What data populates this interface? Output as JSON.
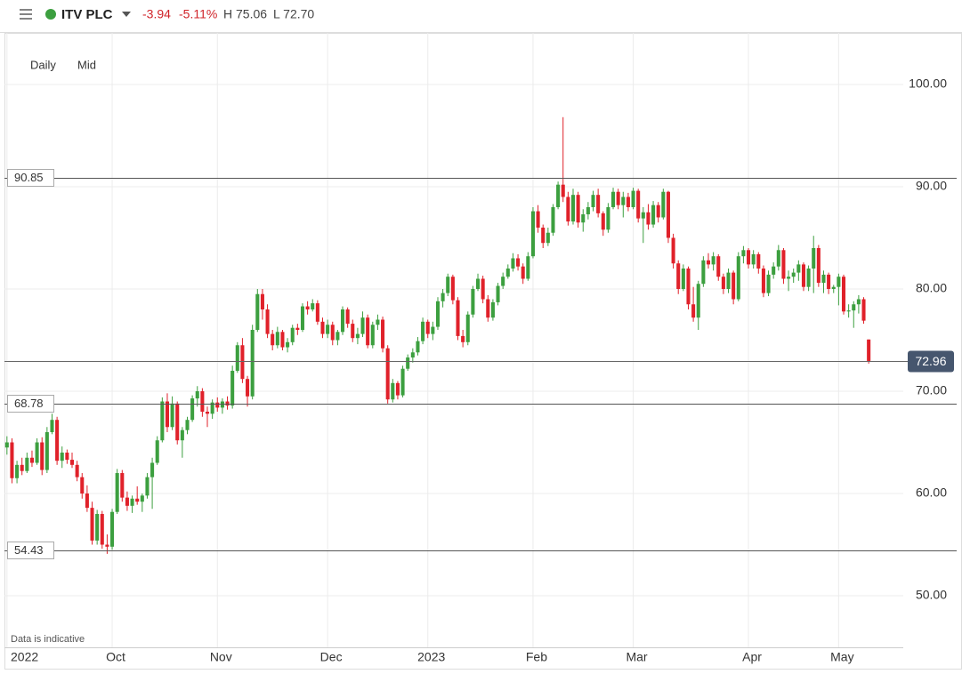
{
  "header": {
    "symbol": "ITV PLC",
    "change": "-3.94",
    "change_pct": "-5.11%",
    "high": "H 75.06",
    "low": "L 72.70"
  },
  "chart_data": {
    "type": "candlestick",
    "interval": "Daily",
    "price_type": "Mid",
    "note": "Data is indicative",
    "up_color": "#3c9f3f",
    "down_color": "#e0212a",
    "grid": true,
    "xlim": [
      -0.5,
      178.9
    ],
    "xticks": [
      {
        "value": 0,
        "label": "2022"
      },
      {
        "value": 21,
        "label": "Oct"
      },
      {
        "value": 42,
        "label": "Nov"
      },
      {
        "value": 64,
        "label": "Dec"
      },
      {
        "value": 84,
        "label": "2023"
      },
      {
        "value": 105,
        "label": "Feb"
      },
      {
        "value": 125,
        "label": "Mar"
      },
      {
        "value": 148,
        "label": "Apr"
      },
      {
        "value": 166,
        "label": "May"
      }
    ],
    "ylim": [
      44.96,
      105.04
    ],
    "yticks": [
      {
        "value": 50,
        "label": "50.00"
      },
      {
        "value": 60,
        "label": "60.00"
      },
      {
        "value": 70,
        "label": "70.00"
      },
      {
        "value": 80,
        "label": "80.00"
      },
      {
        "value": 90,
        "label": "90.00"
      },
      {
        "value": 100,
        "label": "100.00"
      }
    ],
    "levels": [
      90.85,
      68.78,
      54.43
    ],
    "last_price": 72.96,
    "ohlc": [
      [
        64.5,
        65.6,
        63.8,
        65.0
      ],
      [
        65.0,
        65.4,
        61.0,
        61.5
      ],
      [
        61.5,
        63.2,
        61.0,
        62.8
      ],
      [
        62.8,
        63.5,
        61.8,
        62.2
      ],
      [
        62.2,
        64.0,
        62.0,
        63.5
      ],
      [
        63.5,
        64.2,
        62.6,
        63.0
      ],
      [
        63.0,
        65.4,
        62.8,
        65.0
      ],
      [
        65.0,
        65.5,
        61.8,
        62.3
      ],
      [
        62.3,
        66.5,
        62.0,
        66.0
      ],
      [
        66.0,
        67.8,
        65.8,
        67.2
      ],
      [
        67.2,
        67.5,
        62.8,
        63.2
      ],
      [
        63.2,
        64.6,
        62.5,
        64.0
      ],
      [
        64.0,
        64.3,
        62.9,
        63.3
      ],
      [
        63.3,
        64.0,
        62.5,
        62.8
      ],
      [
        62.8,
        63.2,
        61.2,
        61.6
      ],
      [
        61.6,
        62.0,
        59.5,
        60.0
      ],
      [
        60.0,
        60.8,
        58.2,
        58.6
      ],
      [
        58.6,
        59.2,
        55.0,
        55.4
      ],
      [
        55.4,
        58.4,
        55.0,
        58.0
      ],
      [
        58.0,
        58.3,
        54.6,
        55.0
      ],
      [
        55.0,
        56.0,
        54.1,
        54.8
      ],
      [
        54.8,
        58.5,
        54.5,
        58.2
      ],
      [
        58.2,
        62.4,
        58.0,
        62.0
      ],
      [
        62.0,
        62.3,
        59.2,
        59.6
      ],
      [
        59.6,
        60.2,
        58.3,
        58.8
      ],
      [
        58.8,
        59.8,
        58.1,
        59.5
      ],
      [
        59.5,
        60.7,
        58.9,
        59.2
      ],
      [
        59.2,
        60.0,
        58.2,
        59.8
      ],
      [
        59.8,
        62.0,
        59.5,
        61.6
      ],
      [
        61.6,
        63.5,
        58.5,
        63.0
      ],
      [
        63.0,
        65.6,
        62.8,
        65.2
      ],
      [
        65.2,
        69.4,
        65.0,
        69.0
      ],
      [
        69.0,
        69.8,
        66.0,
        66.5
      ],
      [
        66.5,
        69.5,
        66.2,
        68.8
      ],
      [
        68.8,
        69.0,
        64.8,
        65.2
      ],
      [
        65.2,
        66.5,
        63.5,
        66.2
      ],
      [
        66.2,
        67.5,
        65.8,
        67.2
      ],
      [
        67.2,
        69.6,
        67.0,
        69.3
      ],
      [
        69.3,
        70.5,
        68.5,
        70.0
      ],
      [
        70.0,
        70.3,
        67.5,
        68.0
      ],
      [
        68.0,
        68.5,
        66.5,
        67.8
      ],
      [
        67.8,
        69.2,
        67.3,
        68.9
      ],
      [
        68.9,
        69.4,
        68.0,
        68.4
      ],
      [
        68.4,
        69.3,
        67.8,
        69.0
      ],
      [
        69.0,
        69.5,
        68.2,
        68.6
      ],
      [
        68.6,
        72.5,
        68.3,
        72.0
      ],
      [
        72.0,
        74.8,
        71.8,
        74.5
      ],
      [
        74.5,
        75.2,
        70.8,
        71.2
      ],
      [
        71.2,
        71.5,
        68.5,
        69.5
      ],
      [
        69.5,
        76.5,
        69.2,
        76.0
      ],
      [
        76.0,
        80.0,
        75.8,
        79.5
      ],
      [
        79.5,
        80.0,
        77.0,
        78.0
      ],
      [
        78.0,
        78.5,
        75.2,
        75.6
      ],
      [
        75.6,
        76.0,
        74.0,
        74.5
      ],
      [
        74.5,
        76.3,
        74.2,
        75.8
      ],
      [
        75.8,
        76.0,
        74.0,
        74.3
      ],
      [
        74.3,
        75.2,
        73.8,
        74.8
      ],
      [
        74.8,
        76.5,
        74.5,
        76.2
      ],
      [
        76.2,
        76.6,
        75.5,
        76.0
      ],
      [
        76.0,
        78.6,
        75.8,
        78.3
      ],
      [
        78.3,
        78.8,
        77.5,
        78.0
      ],
      [
        78.0,
        79.0,
        77.8,
        78.6
      ],
      [
        78.6,
        78.9,
        76.5,
        76.8
      ],
      [
        76.8,
        77.2,
        75.2,
        75.6
      ],
      [
        75.6,
        77.0,
        75.2,
        76.5
      ],
      [
        76.5,
        76.8,
        74.5,
        75.0
      ],
      [
        75.0,
        76.0,
        74.5,
        75.8
      ],
      [
        75.8,
        78.3,
        75.5,
        78.0
      ],
      [
        78.0,
        78.2,
        76.2,
        76.6
      ],
      [
        76.6,
        77.0,
        74.8,
        75.2
      ],
      [
        75.2,
        76.2,
        74.6,
        75.6
      ],
      [
        75.6,
        77.8,
        75.3,
        77.2
      ],
      [
        77.2,
        77.5,
        74.2,
        74.5
      ],
      [
        74.5,
        76.8,
        74.2,
        76.5
      ],
      [
        76.5,
        77.5,
        76.0,
        77.0
      ],
      [
        77.0,
        77.3,
        73.8,
        74.2
      ],
      [
        74.2,
        74.5,
        68.8,
        69.2
      ],
      [
        69.2,
        71.2,
        68.9,
        70.8
      ],
      [
        70.8,
        71.0,
        69.2,
        69.6
      ],
      [
        69.6,
        72.5,
        69.4,
        72.2
      ],
      [
        72.2,
        73.6,
        72.0,
        73.3
      ],
      [
        73.3,
        74.2,
        72.8,
        73.8
      ],
      [
        73.8,
        75.3,
        73.5,
        74.9
      ],
      [
        74.9,
        77.2,
        74.6,
        76.8
      ],
      [
        76.8,
        77.0,
        75.2,
        75.6
      ],
      [
        75.6,
        76.8,
        75.0,
        76.3
      ],
      [
        76.3,
        79.2,
        76.0,
        78.8
      ],
      [
        78.8,
        80.0,
        78.2,
        79.6
      ],
      [
        79.6,
        81.5,
        79.3,
        81.2
      ],
      [
        81.2,
        81.4,
        78.5,
        78.9
      ],
      [
        78.9,
        79.2,
        75.0,
        75.4
      ],
      [
        75.4,
        76.0,
        74.3,
        74.8
      ],
      [
        74.8,
        77.8,
        74.5,
        77.5
      ],
      [
        77.5,
        80.3,
        77.2,
        80.0
      ],
      [
        80.0,
        81.5,
        79.8,
        81.0
      ],
      [
        81.0,
        81.3,
        78.6,
        79.0
      ],
      [
        79.0,
        79.4,
        76.8,
        77.2
      ],
      [
        77.2,
        79.0,
        76.9,
        78.7
      ],
      [
        78.7,
        80.6,
        78.4,
        80.3
      ],
      [
        80.3,
        81.6,
        80.0,
        81.2
      ],
      [
        81.2,
        82.4,
        81.0,
        82.0
      ],
      [
        82.0,
        83.5,
        81.7,
        83.0
      ],
      [
        83.0,
        83.4,
        81.8,
        82.2
      ],
      [
        82.2,
        82.5,
        80.5,
        81.0
      ],
      [
        81.0,
        83.6,
        80.8,
        83.2
      ],
      [
        83.2,
        88.0,
        83.0,
        87.6
      ],
      [
        87.6,
        88.2,
        85.5,
        86.0
      ],
      [
        86.0,
        86.3,
        84.0,
        84.5
      ],
      [
        84.5,
        86.0,
        84.2,
        85.5
      ],
      [
        85.5,
        88.3,
        85.2,
        88.0
      ],
      [
        88.0,
        90.5,
        87.8,
        90.2
      ],
      [
        90.2,
        96.8,
        88.5,
        89.0
      ],
      [
        89.0,
        89.5,
        86.2,
        86.6
      ],
      [
        86.6,
        89.8,
        86.3,
        89.2
      ],
      [
        89.2,
        89.5,
        86.0,
        86.5
      ],
      [
        86.5,
        87.8,
        85.6,
        87.3
      ],
      [
        87.3,
        88.5,
        86.8,
        88.0
      ],
      [
        88.0,
        89.6,
        87.6,
        89.2
      ],
      [
        89.2,
        89.8,
        87.0,
        87.4
      ],
      [
        87.4,
        87.6,
        85.2,
        85.8
      ],
      [
        85.8,
        88.4,
        85.5,
        88.0
      ],
      [
        88.0,
        89.9,
        87.8,
        89.5
      ],
      [
        89.5,
        89.8,
        87.8,
        88.2
      ],
      [
        88.2,
        89.5,
        87.0,
        89.0
      ],
      [
        89.0,
        89.4,
        87.6,
        88.0
      ],
      [
        88.0,
        89.9,
        87.8,
        89.6
      ],
      [
        89.6,
        89.8,
        86.5,
        86.9
      ],
      [
        86.9,
        88.0,
        84.5,
        87.5
      ],
      [
        87.5,
        88.3,
        85.8,
        86.3
      ],
      [
        86.3,
        88.6,
        86.0,
        88.2
      ],
      [
        88.2,
        88.5,
        86.5,
        87.0
      ],
      [
        87.0,
        89.8,
        86.8,
        89.5
      ],
      [
        89.5,
        89.6,
        84.5,
        85.0
      ],
      [
        85.0,
        85.4,
        82.0,
        82.5
      ],
      [
        82.5,
        82.8,
        79.5,
        80.0
      ],
      [
        80.0,
        82.4,
        79.8,
        82.0
      ],
      [
        82.0,
        82.2,
        78.0,
        78.5
      ],
      [
        78.5,
        80.2,
        76.8,
        77.2
      ],
      [
        77.2,
        80.8,
        76.0,
        80.5
      ],
      [
        80.5,
        83.2,
        80.2,
        82.8
      ],
      [
        82.8,
        83.5,
        82.0,
        82.4
      ],
      [
        82.4,
        83.6,
        81.8,
        83.2
      ],
      [
        83.2,
        83.4,
        80.8,
        81.2
      ],
      [
        81.2,
        81.5,
        79.5,
        80.0
      ],
      [
        80.0,
        82.0,
        79.6,
        81.6
      ],
      [
        81.6,
        81.8,
        78.5,
        79.0
      ],
      [
        79.0,
        83.6,
        78.8,
        83.2
      ],
      [
        83.2,
        84.2,
        82.5,
        83.8
      ],
      [
        83.8,
        84.0,
        82.0,
        82.4
      ],
      [
        82.4,
        83.8,
        82.0,
        83.4
      ],
      [
        83.4,
        83.6,
        81.5,
        82.0
      ],
      [
        82.0,
        82.3,
        79.2,
        79.6
      ],
      [
        79.6,
        81.8,
        79.3,
        81.4
      ],
      [
        81.4,
        82.6,
        81.0,
        82.2
      ],
      [
        82.2,
        84.3,
        81.8,
        83.8
      ],
      [
        83.8,
        84.0,
        80.5,
        81.0
      ],
      [
        81.0,
        81.8,
        79.8,
        81.2
      ],
      [
        81.2,
        82.0,
        80.6,
        81.6
      ],
      [
        81.6,
        82.8,
        80.8,
        82.4
      ],
      [
        82.4,
        82.6,
        79.8,
        80.2
      ],
      [
        80.2,
        82.3,
        79.8,
        82.0
      ],
      [
        82.0,
        85.2,
        79.6,
        84.0
      ],
      [
        84.0,
        84.3,
        80.2,
        80.6
      ],
      [
        80.6,
        81.8,
        79.6,
        81.4
      ],
      [
        81.4,
        81.6,
        79.5,
        80.0
      ],
      [
        80.0,
        80.4,
        79.6,
        80.2
      ],
      [
        80.2,
        81.5,
        78.4,
        81.2
      ],
      [
        81.2,
        81.4,
        77.5,
        77.8
      ],
      [
        77.8,
        78.5,
        77.2,
        77.9
      ],
      [
        77.9,
        78.8,
        76.2,
        78.5
      ],
      [
        78.5,
        79.4,
        77.6,
        79.0
      ],
      [
        79.0,
        79.2,
        76.6,
        76.9
      ],
      [
        75.06,
        75.06,
        72.7,
        72.96
      ]
    ]
  }
}
